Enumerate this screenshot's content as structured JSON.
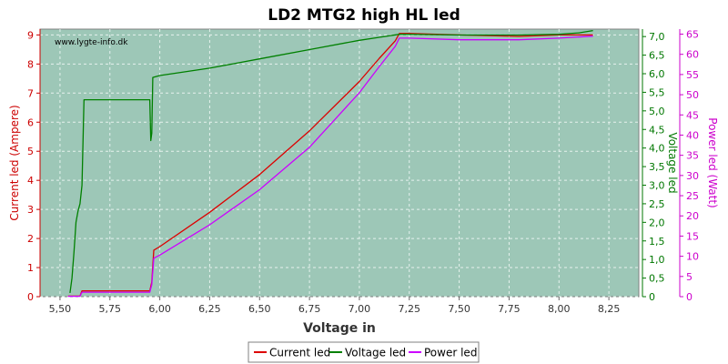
{
  "chart_data": {
    "type": "line",
    "title": "LD2 MTG2 high HL led",
    "watermark": "www.lygte-info.dk",
    "xlabel": "Voltage in",
    "xlim": [
      5.4,
      8.4
    ],
    "xticks": [
      "5,50",
      "5,75",
      "6,00",
      "6,25",
      "6,50",
      "6,75",
      "7,00",
      "7,25",
      "7,50",
      "7,75",
      "8,00",
      "8,25"
    ],
    "axes": {
      "left": {
        "label": "Current led (Ampere)",
        "color": "#cc0000",
        "lim": [
          0,
          9.2
        ],
        "ticks": [
          "0",
          "1",
          "2",
          "3",
          "4",
          "5",
          "6",
          "7",
          "8",
          "9"
        ]
      },
      "right1": {
        "label": "Voltage led",
        "color": "#007700",
        "lim": [
          0,
          7.2
        ],
        "ticks": [
          "0",
          "0,5",
          "1,0",
          "1,5",
          "2,0",
          "2,5",
          "3,0",
          "3,5",
          "4,0",
          "4,5",
          "5,0",
          "5,5",
          "6,0",
          "6,5",
          "7,0"
        ]
      },
      "right2": {
        "label": "Power led (Watt)",
        "color": "#cc00cc",
        "lim": [
          0,
          66.24
        ],
        "ticks": [
          "0",
          "5",
          "10",
          "15",
          "20",
          "25",
          "30",
          "35",
          "40",
          "45",
          "50",
          "55",
          "60",
          "65"
        ]
      }
    },
    "grid": true,
    "legend_position": "bottom",
    "series": [
      {
        "name": "Current led",
        "axis": "left",
        "color": "#dd0000",
        "x": [
          5.54,
          5.57,
          5.6,
          5.61,
          5.7,
          5.8,
          5.95,
          5.96,
          5.97,
          6.0,
          6.25,
          6.5,
          6.75,
          7.0,
          7.1,
          7.18,
          7.2,
          7.25,
          7.5,
          7.8,
          8.0,
          8.17
        ],
        "y": [
          0.02,
          0.02,
          0.02,
          0.2,
          0.2,
          0.2,
          0.2,
          0.5,
          1.6,
          1.72,
          2.9,
          4.2,
          5.7,
          7.4,
          8.2,
          8.8,
          9.05,
          9.05,
          9.0,
          8.95,
          9.0,
          9.0
        ]
      },
      {
        "name": "Voltage led",
        "axis": "right1",
        "color": "#008000",
        "x": [
          5.55,
          5.56,
          5.57,
          5.58,
          5.59,
          5.6,
          5.61,
          5.62,
          5.63,
          5.7,
          5.8,
          5.95,
          5.955,
          5.96,
          5.965,
          6.0,
          6.25,
          6.5,
          6.75,
          7.0,
          7.1,
          7.2,
          7.25,
          7.5,
          7.8,
          8.0,
          8.1,
          8.17
        ],
        "y": [
          0.1,
          0.5,
          1.2,
          2.0,
          2.3,
          2.5,
          3.0,
          5.3,
          5.3,
          5.3,
          5.3,
          5.3,
          4.2,
          4.4,
          5.9,
          5.95,
          6.15,
          6.4,
          6.65,
          6.9,
          6.98,
          7.06,
          7.06,
          7.04,
          7.04,
          7.06,
          7.1,
          7.16
        ]
      },
      {
        "name": "Power led",
        "axis": "right2",
        "color": "#cc00ff",
        "x": [
          5.54,
          5.57,
          5.6,
          5.61,
          5.7,
          5.8,
          5.95,
          5.96,
          5.97,
          6.0,
          6.25,
          6.5,
          6.75,
          7.0,
          7.1,
          7.18,
          7.2,
          7.25,
          7.5,
          7.8,
          8.0,
          8.17
        ],
        "y": [
          0.1,
          0.1,
          0.1,
          1.1,
          1.1,
          1.1,
          1.1,
          3.0,
          9.5,
          10.3,
          17.8,
          26.5,
          37.0,
          50.5,
          57.0,
          62.0,
          64.0,
          64.0,
          63.6,
          63.6,
          64.0,
          64.5
        ]
      }
    ]
  }
}
